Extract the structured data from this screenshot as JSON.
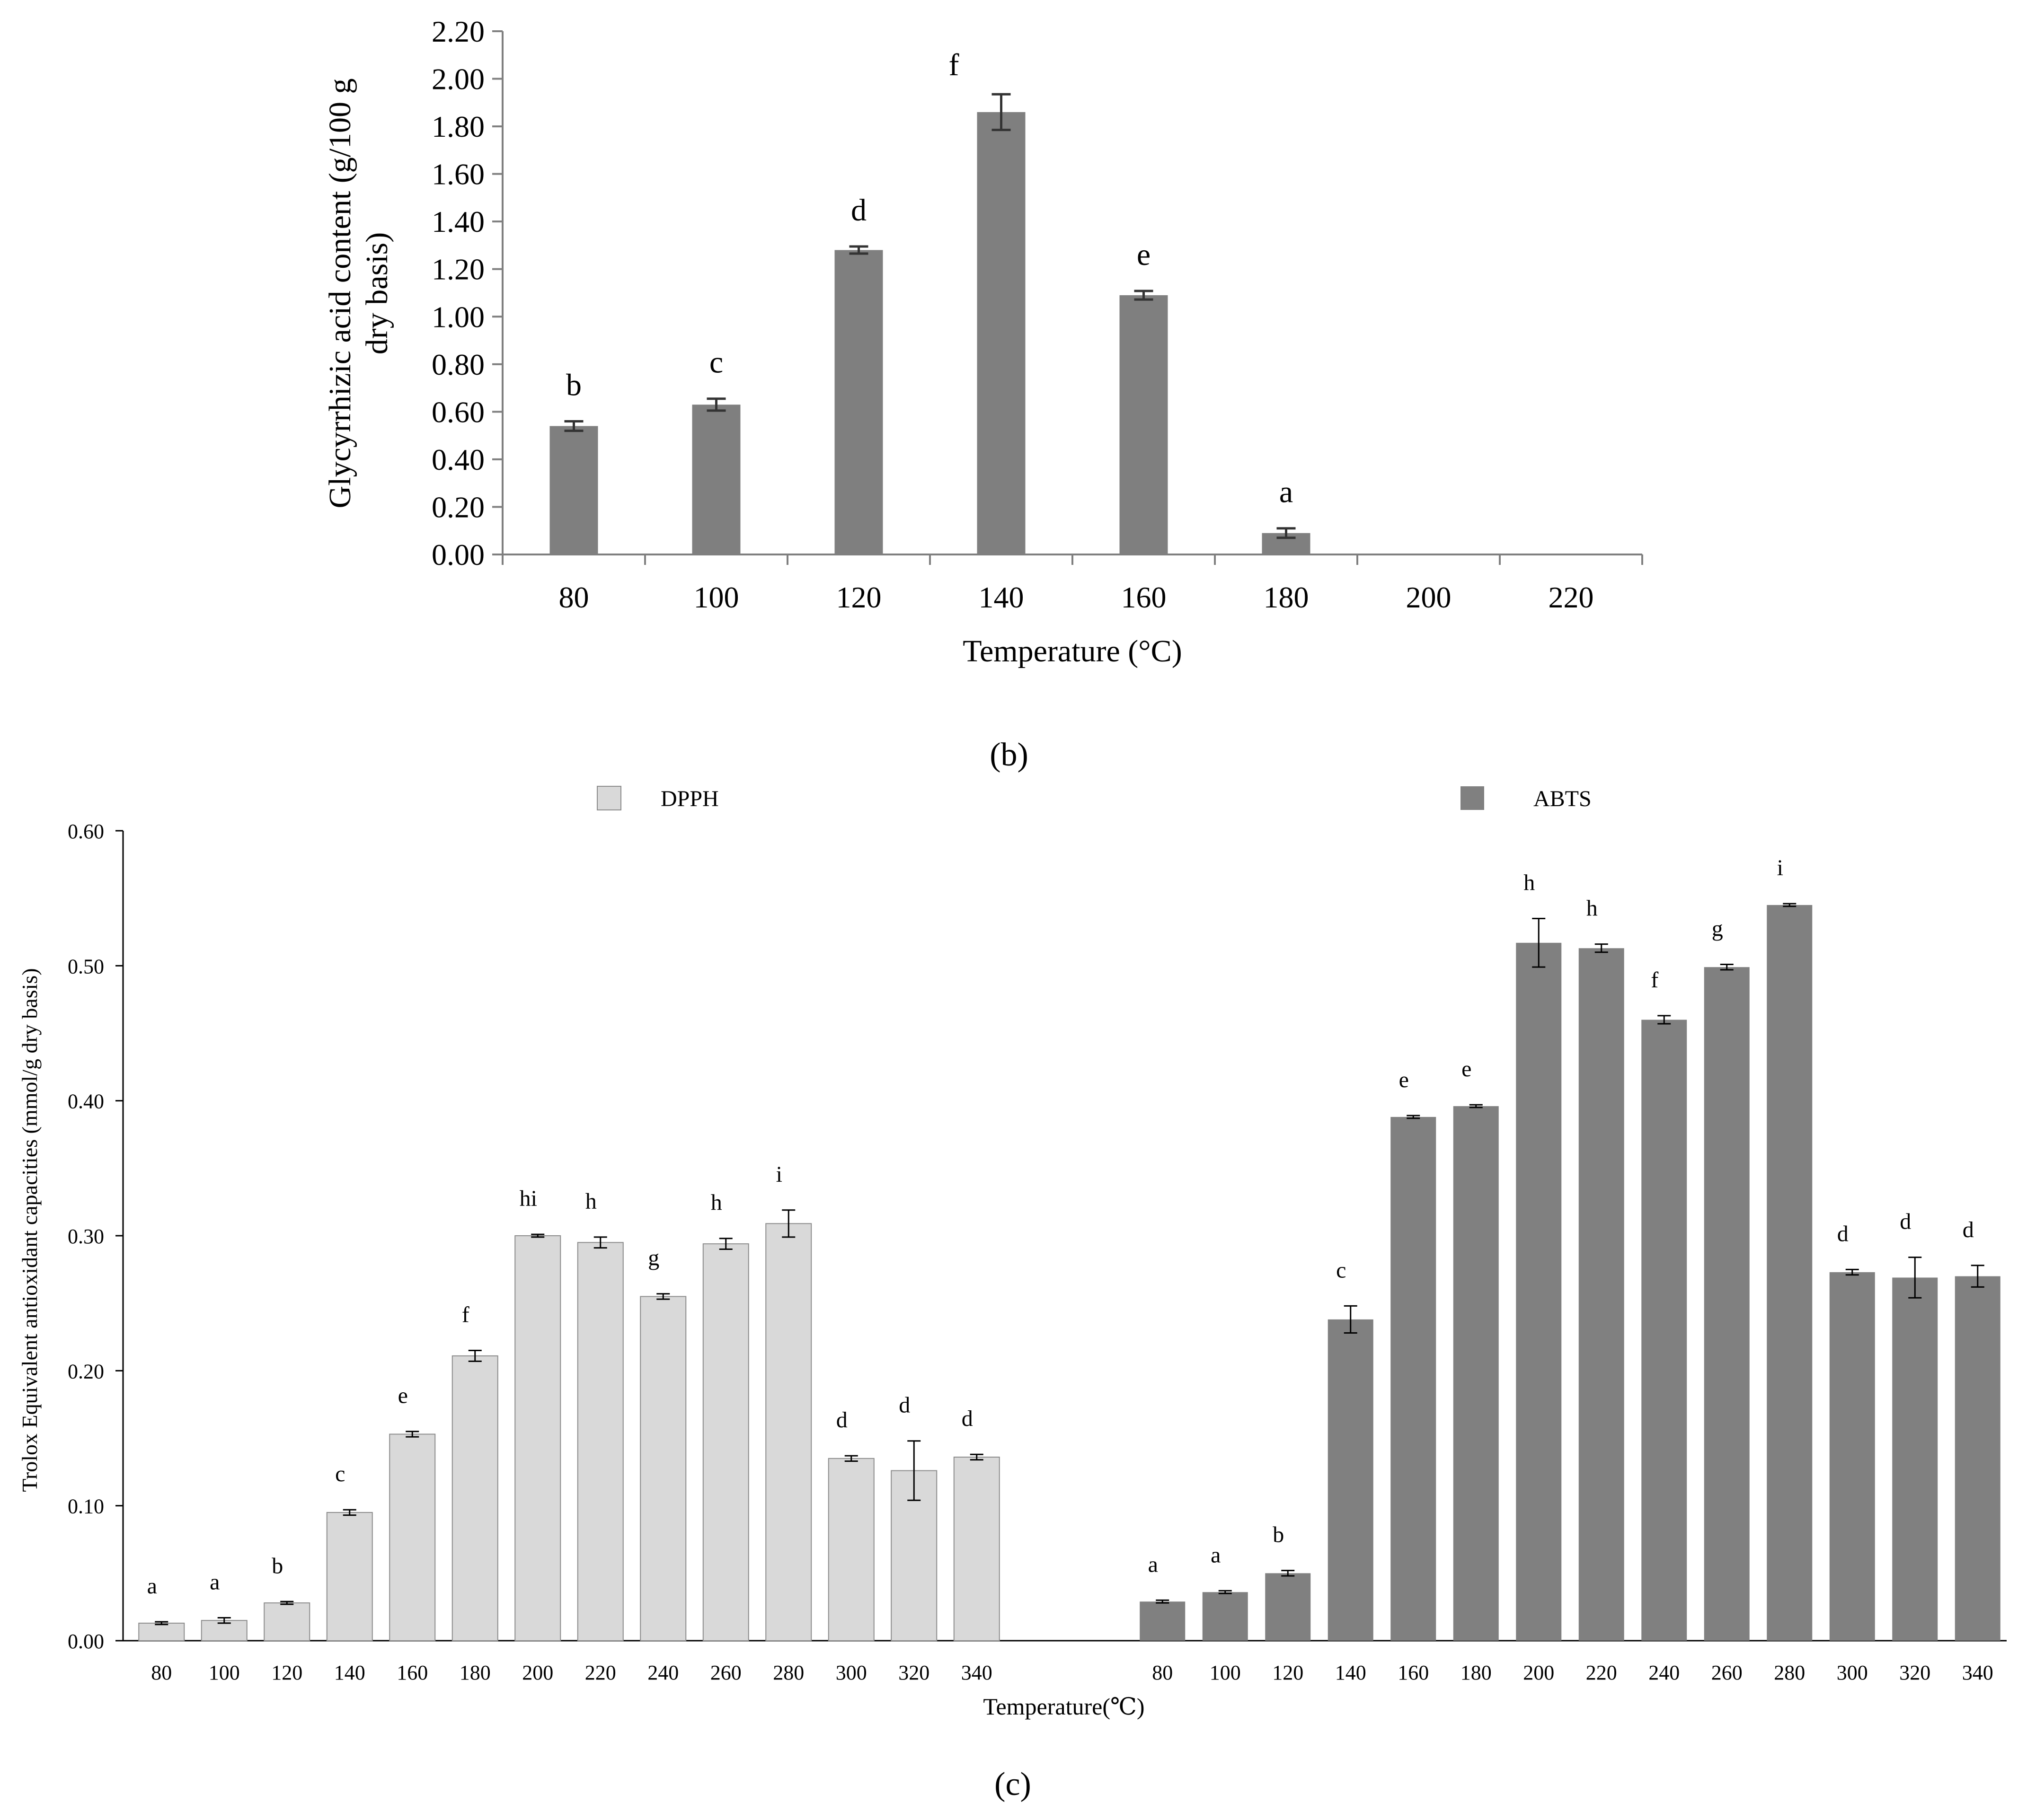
{
  "panel_labels": {
    "b": "(b)",
    "c": "(c)"
  },
  "chart_data": [
    {
      "type": "bar",
      "title": "",
      "xlabel": "Temperature (°C)",
      "ylabel": "Glycyrrhizic acid content (g/100 g dry basis)",
      "ylabel_lines": [
        "Glycyrrhizic acid content (g/100 g",
        "dry basis)"
      ],
      "ylim": [
        0,
        2.2
      ],
      "yticks": [
        "0.00",
        "0.20",
        "0.40",
        "0.60",
        "0.80",
        "1.00",
        "1.20",
        "1.40",
        "1.60",
        "1.80",
        "2.00",
        "2.20"
      ],
      "categories": [
        "80",
        "100",
        "120",
        "140",
        "160",
        "180",
        "200",
        "220"
      ],
      "values": [
        0.54,
        0.63,
        1.28,
        1.86,
        1.09,
        0.09,
        0,
        0
      ],
      "errors": [
        0.02,
        0.025,
        0.015,
        0.075,
        0.018,
        0.02,
        0,
        0
      ],
      "letters": [
        "b",
        "c",
        "d",
        "f",
        "e",
        "a",
        "",
        ""
      ],
      "color": "#7f7f7f"
    },
    {
      "type": "bar",
      "title": "",
      "xlabel": "Temperature(℃)",
      "ylabel": "Trolox Equivalent antioxidant capacities (mmol/g dry basis)",
      "ylim": [
        0,
        0.6
      ],
      "yticks": [
        "0.00",
        "0.10",
        "0.20",
        "0.30",
        "0.40",
        "0.50",
        "0.60"
      ],
      "categories": [
        "80",
        "100",
        "120",
        "140",
        "160",
        "180",
        "200",
        "220",
        "240",
        "260",
        "280",
        "300",
        "320",
        "340"
      ],
      "legend_placement": "top",
      "series": [
        {
          "name": "DPPH",
          "color": "#d9d9d9",
          "values": [
            0.013,
            0.015,
            0.028,
            0.095,
            0.153,
            0.211,
            0.3,
            0.295,
            0.255,
            0.294,
            0.309,
            0.135,
            0.126,
            0.136
          ],
          "errors": [
            0.001,
            0.002,
            0.001,
            0.002,
            0.002,
            0.004,
            0.001,
            0.004,
            0.002,
            0.004,
            0.01,
            0.002,
            0.022,
            0.002
          ],
          "letters": [
            "a",
            "a",
            "b",
            "c",
            "e",
            "f",
            "hi",
            "h",
            "g",
            "h",
            "i",
            "d",
            "d",
            "d"
          ]
        },
        {
          "name": "ABTS",
          "color": "#808080",
          "values": [
            0.029,
            0.036,
            0.05,
            0.238,
            0.388,
            0.396,
            0.517,
            0.513,
            0.46,
            0.499,
            0.545,
            0.273,
            0.269,
            0.27
          ],
          "errors": [
            0.001,
            0.001,
            0.002,
            0.01,
            0.001,
            0.001,
            0.018,
            0.003,
            0.003,
            0.002,
            0.001,
            0.002,
            0.015,
            0.008
          ],
          "letters": [
            "a",
            "a",
            "b",
            "c",
            "e",
            "e",
            "h",
            "h",
            "f",
            "g",
            "i",
            "d",
            "d",
            "d"
          ]
        }
      ]
    }
  ]
}
